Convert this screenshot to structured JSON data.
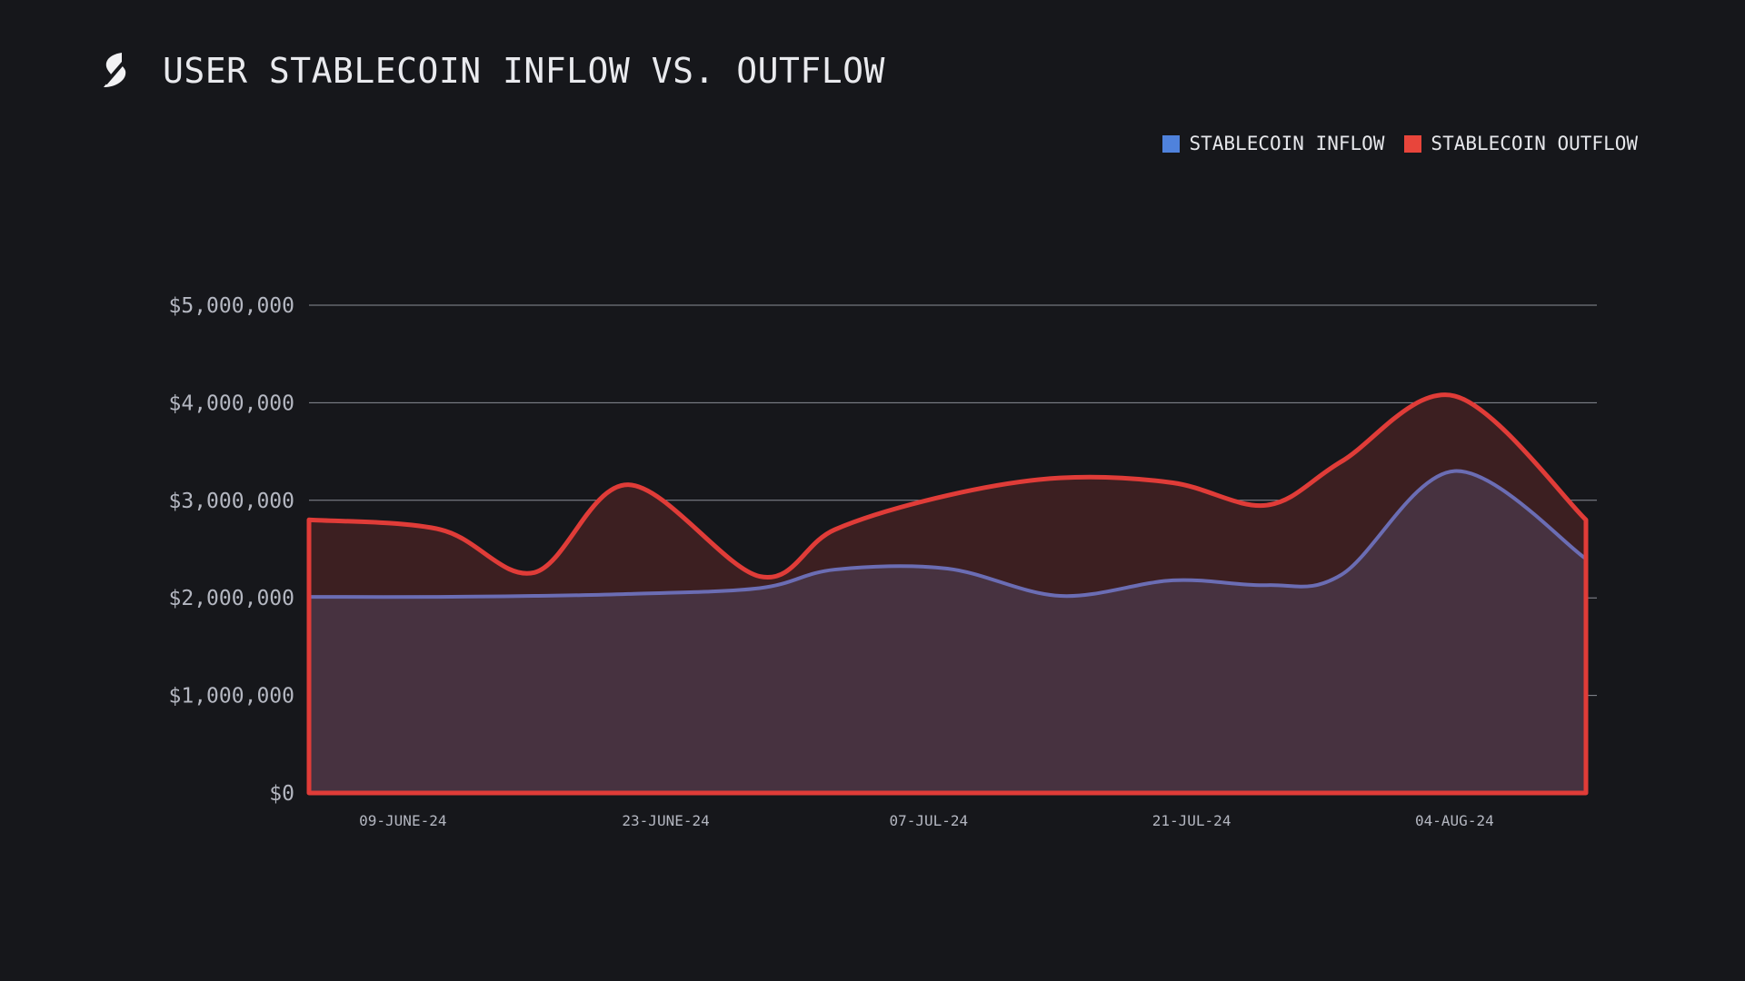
{
  "title": "USER STABLECOIN INFLOW VS. OUTFLOW",
  "logo_icon": "stablecoin-s-logo-icon",
  "colors": {
    "background": "#16171b",
    "inflow_line": "#6b6db4",
    "inflow_fill": "#473240",
    "outflow_line": "#e03c38",
    "outflow_fill": "#3c1f21",
    "grid": "#8a8d96",
    "legend_inflow": "#4f82dc",
    "legend_outflow": "#e8453b"
  },
  "chart_data": {
    "type": "area",
    "title": "USER STABLECOIN INFLOW VS. OUTFLOW",
    "xlabel": "",
    "ylabel": "",
    "legend_position": "top-right",
    "grid": true,
    "ylim": [
      0,
      5000000
    ],
    "y_ticks": [
      0,
      1000000,
      2000000,
      3000000,
      4000000,
      5000000
    ],
    "y_tick_labels": [
      "$0",
      "$1,000,000",
      "$2,000,000",
      "$3,000,000",
      "$4,000,000",
      "$5,000,000"
    ],
    "x_tick_labels": [
      "09-JUNE-24",
      "23-JUNE-24",
      "07-JUL-24",
      "21-JUL-24",
      "04-AUG-24"
    ],
    "x": [
      "2024-06-04",
      "2024-06-11",
      "2024-06-16",
      "2024-06-21",
      "2024-06-28",
      "2024-07-02",
      "2024-07-08",
      "2024-07-14",
      "2024-07-20",
      "2024-07-25",
      "2024-07-29",
      "2024-08-04",
      "2024-08-11"
    ],
    "series": [
      {
        "name": "STABLECOIN INFLOW",
        "values": [
          2010000,
          2010000,
          2020000,
          2040000,
          2100000,
          2290000,
          2300000,
          2020000,
          2180000,
          2130000,
          2240000,
          3300000,
          2400000
        ]
      },
      {
        "name": "STABLECOIN OUTFLOW",
        "values": [
          2800000,
          2700000,
          2260000,
          3160000,
          2220000,
          2700000,
          3050000,
          3230000,
          3180000,
          2950000,
          3400000,
          4070000,
          2800000
        ]
      }
    ]
  }
}
